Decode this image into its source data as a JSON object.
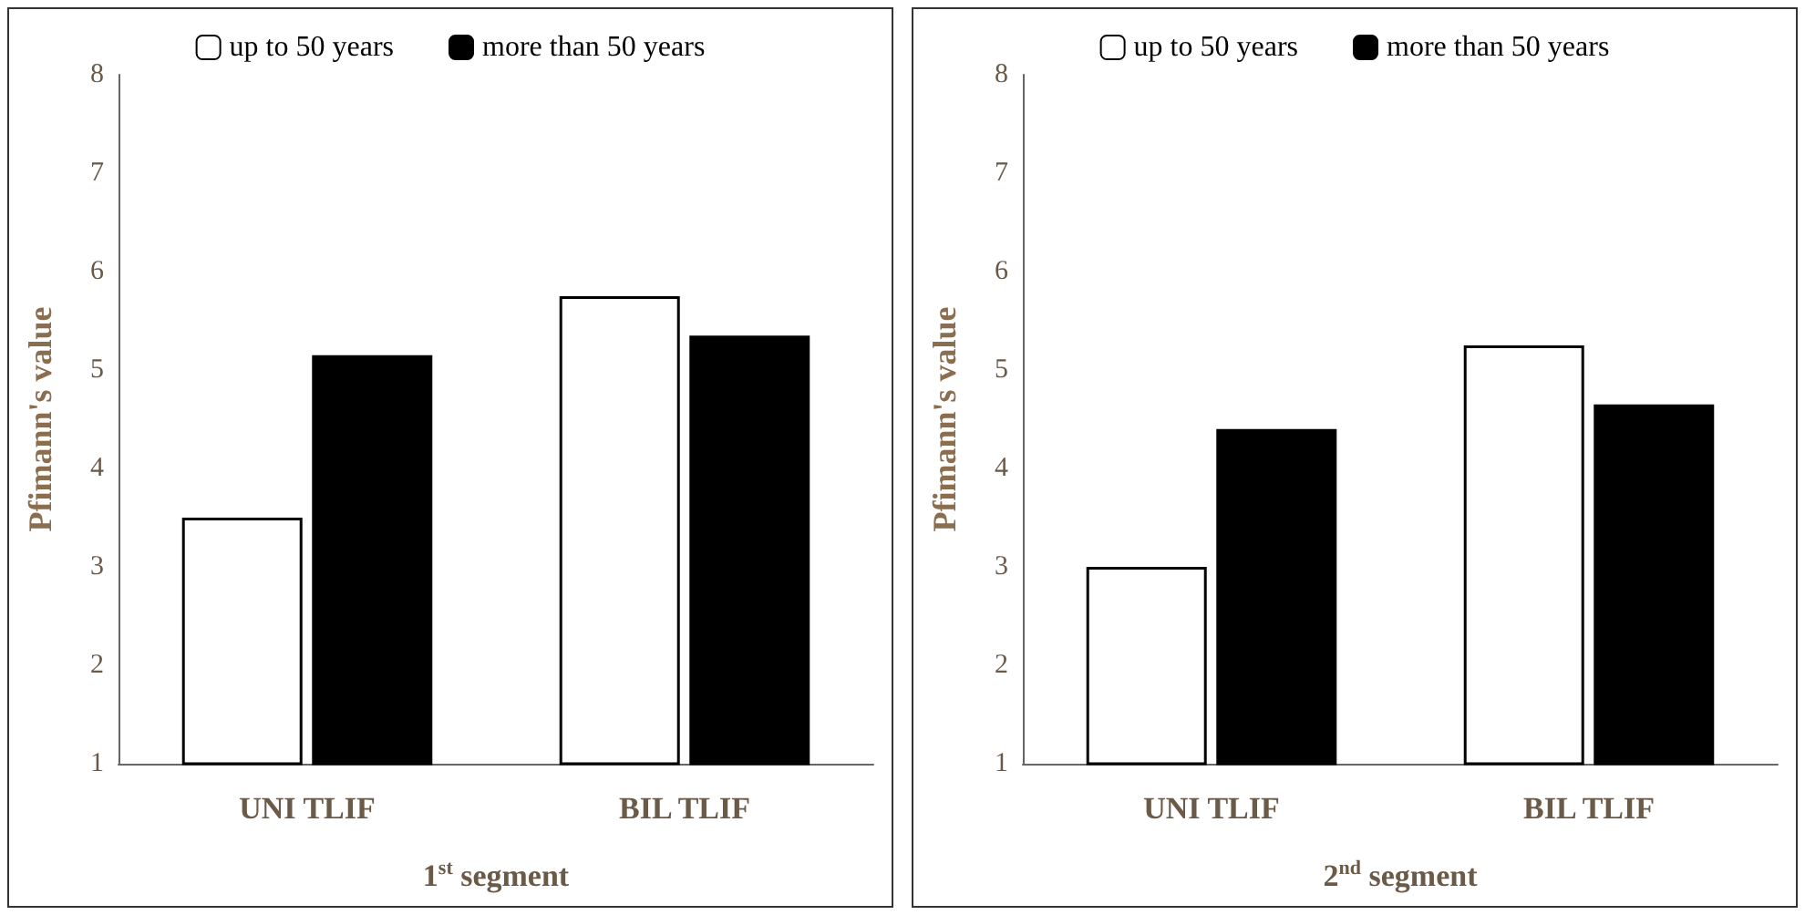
{
  "chart_data": [
    {
      "type": "bar",
      "xlabel": "1$^{st}$ segment",
      "ylabel": "Pfimann's value",
      "categories": [
        "UNI TLIF",
        "BIL TLIF"
      ],
      "ylim": [
        1,
        8
      ],
      "yticks": [
        1,
        2,
        3,
        4,
        5,
        6,
        7,
        8
      ],
      "legend": "top",
      "grid": false,
      "series": [
        {
          "name": "up to 50 years",
          "color": "#ffffff",
          "values": [
            3.5,
            5.75
          ]
        },
        {
          "name": "more than 50 years",
          "color": "#000000",
          "values": [
            5.15,
            5.35
          ]
        }
      ]
    },
    {
      "type": "bar",
      "xlabel": "2$^{nd}$ segment",
      "ylabel": "Pfimann's value",
      "categories": [
        "UNI TLIF",
        "BIL TLIF"
      ],
      "ylim": [
        1,
        8
      ],
      "yticks": [
        1,
        2,
        3,
        4,
        5,
        6,
        7,
        8
      ],
      "legend": "top",
      "grid": false,
      "series": [
        {
          "name": "up to 50 years",
          "color": "#ffffff",
          "values": [
            3.0,
            5.25
          ]
        },
        {
          "name": "more than 50 years",
          "color": "#000000",
          "values": [
            4.4,
            4.65
          ]
        }
      ]
    }
  ]
}
